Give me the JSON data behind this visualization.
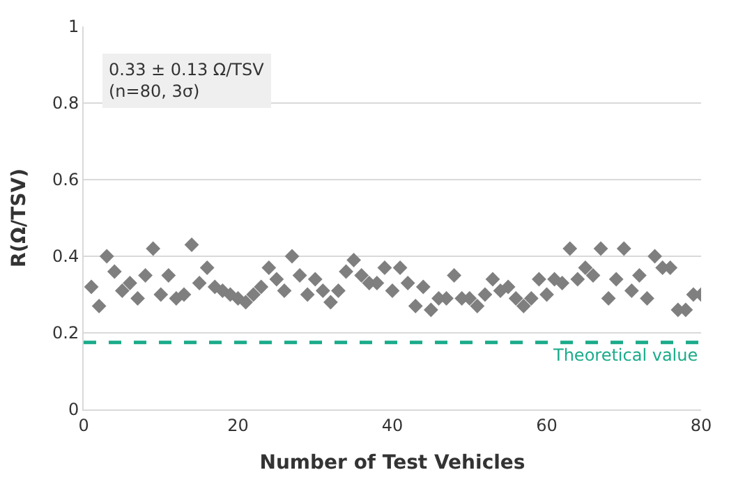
{
  "chart_data": {
    "type": "scatter",
    "xlabel": "Number of Test Vehicles",
    "ylabel": "R(Ω/TSV)",
    "x": [
      1,
      2,
      3,
      4,
      5,
      6,
      7,
      8,
      9,
      10,
      11,
      12,
      13,
      14,
      15,
      16,
      17,
      18,
      19,
      20,
      21,
      22,
      23,
      24,
      25,
      26,
      27,
      28,
      29,
      30,
      31,
      32,
      33,
      34,
      35,
      36,
      37,
      38,
      39,
      40,
      41,
      42,
      43,
      44,
      45,
      46,
      47,
      48,
      49,
      50,
      51,
      52,
      53,
      54,
      55,
      56,
      57,
      58,
      59,
      60,
      61,
      62,
      63,
      64,
      65,
      66,
      67,
      68,
      69,
      70,
      71,
      72,
      73,
      74,
      75,
      76,
      77,
      78,
      79,
      80
    ],
    "series": [
      {
        "color": "#7f7f7f",
        "marker": "diamond",
        "values": [
          0.32,
          0.27,
          0.4,
          0.36,
          0.31,
          0.33,
          0.29,
          0.35,
          0.42,
          0.3,
          0.35,
          0.29,
          0.3,
          0.43,
          0.33,
          0.37,
          0.32,
          0.31,
          0.3,
          0.29,
          0.28,
          0.3,
          0.32,
          0.37,
          0.34,
          0.31,
          0.4,
          0.35,
          0.3,
          0.34,
          0.31,
          0.28,
          0.31,
          0.36,
          0.39,
          0.35,
          0.33,
          0.33,
          0.37,
          0.31,
          0.37,
          0.33,
          0.27,
          0.32,
          0.26,
          0.29,
          0.29,
          0.35,
          0.29,
          0.29,
          0.27,
          0.3,
          0.34,
          0.31,
          0.32,
          0.29,
          0.27,
          0.29,
          0.34,
          0.3,
          0.34,
          0.33,
          0.42,
          0.34,
          0.37,
          0.35,
          0.42,
          0.29,
          0.34,
          0.42,
          0.31,
          0.35,
          0.29,
          0.4,
          0.37,
          0.37,
          0.26,
          0.26,
          0.3,
          0.3
        ]
      }
    ],
    "xlim": [
      0,
      80
    ],
    "xticks": [
      0,
      20,
      40,
      60,
      80
    ],
    "ylim": [
      0,
      1
    ],
    "yticks": [
      0,
      0.2,
      0.4,
      0.6,
      0.8,
      1
    ],
    "grid": "y",
    "ref_lines": [
      {
        "axis": "y",
        "value": 0.175,
        "label": "Theoretical value",
        "color": "#1aab8a",
        "line_style": "dashed"
      }
    ],
    "annotations": [
      "0.33 ± 0.13 Ω/TSV\n(n=80, 3σ)"
    ]
  }
}
